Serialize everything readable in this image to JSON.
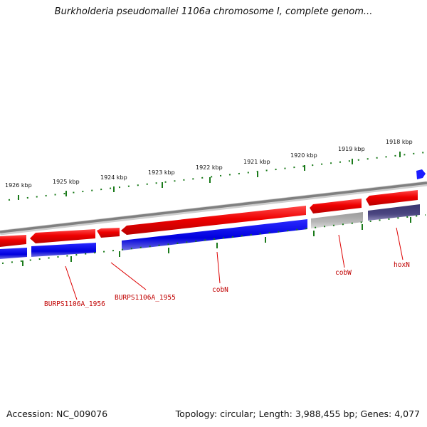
{
  "title": "Burkholderia pseudomallei 1106a chromosome I, complete genom...",
  "footer": {
    "accession": "Accession: NC_009076",
    "topology": "Topology: circular; Length: 3,988,455 bp; Genes: 4,077"
  },
  "ruler": {
    "labels": [
      "1926 kbp",
      "1925 kbp",
      "1924 kbp",
      "1923 kbp",
      "1922 kbp",
      "1921 kbp",
      "1920 kbp",
      "1919 kbp",
      "1918 kbp"
    ]
  },
  "gene_labels": [
    "BURPS1106A_1956",
    "BURPS1106A_1955",
    "cobN",
    "cobW",
    "hoxN"
  ],
  "colors": {
    "forward_strand": "#ee0000",
    "reverse_strand": "#0000dd",
    "pseudo_gene": "#b8b8b8",
    "hoxn_cds": "#4a4580",
    "backbone": "#808080",
    "tick": "#1a7a1a",
    "label": "#c00000"
  }
}
